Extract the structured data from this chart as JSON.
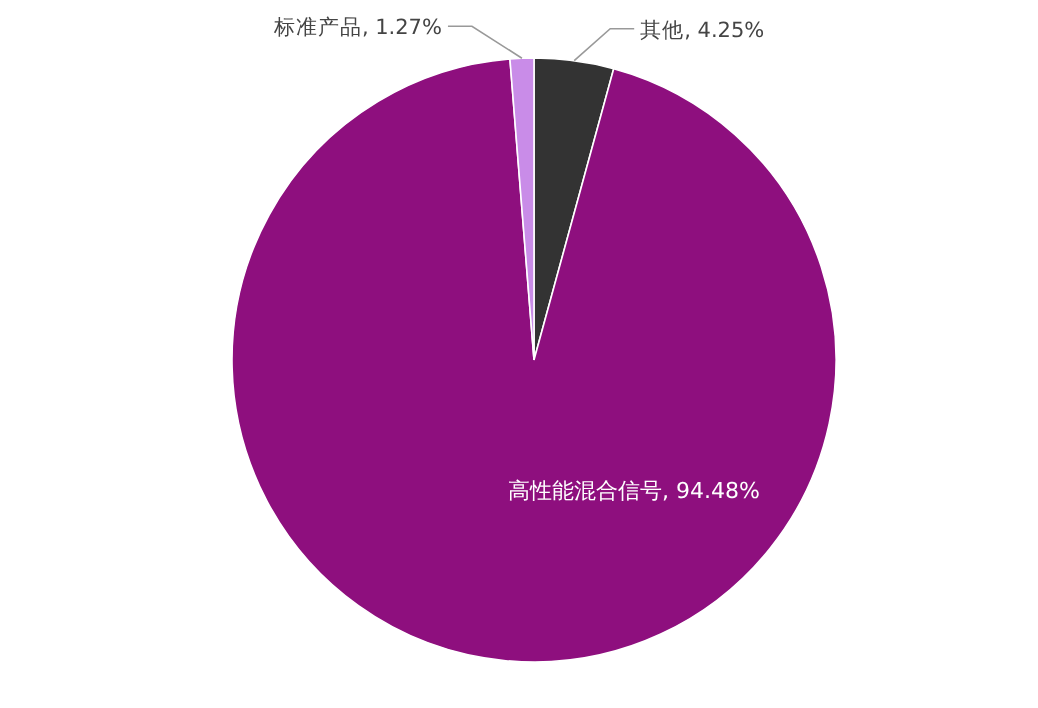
{
  "chart_data": {
    "type": "pie",
    "categories": [
      "其他",
      "高性能混合信号",
      "标准产品"
    ],
    "values": [
      4.25,
      94.48,
      1.27
    ],
    "value_labels": [
      "4.25%",
      "94.48%",
      "1.27%"
    ],
    "colors": [
      "#333333",
      "#8e0f7e",
      "#c98ce8"
    ]
  }
}
